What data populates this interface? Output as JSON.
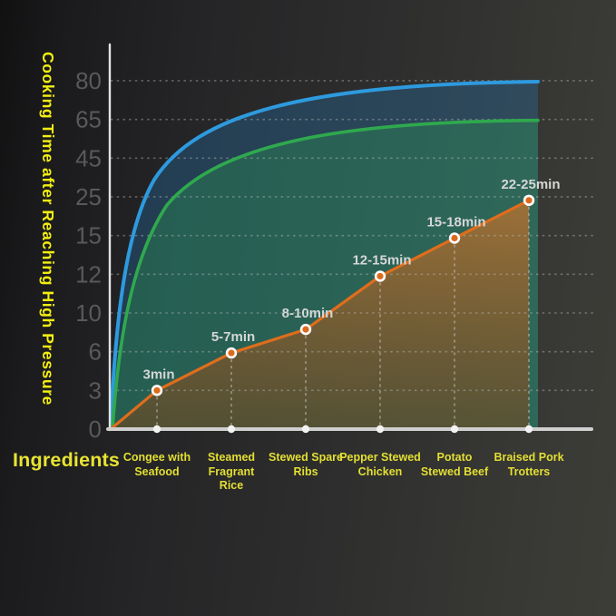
{
  "page": {
    "background_left": "#161617",
    "background_right": "#3d3d38"
  },
  "chart_data": {
    "type": "line",
    "title": "",
    "ylabel": "Cooking Time after Reaching High Pressure",
    "xlabel": "Ingredients",
    "categories": [
      "Congee with Seafood",
      "Steamed Fragrant Rice",
      "Stewed Spare Ribs",
      "Pepper Stewed Chicken",
      "Potato Stewed Beef",
      "Braised Pork Trotters"
    ],
    "category_lines": [
      [
        "Congee with",
        "Seafood"
      ],
      [
        "Steamed",
        "Fragrant",
        "Rice"
      ],
      [
        "Stewed Spare",
        "Ribs"
      ],
      [
        "Pepper Stewed",
        "Chicken"
      ],
      [
        "Potato",
        "Stewed Beef"
      ],
      [
        "Braised Pork",
        "Trotters"
      ]
    ],
    "y_ticks": [
      0,
      3,
      6,
      10,
      12,
      15,
      25,
      45,
      65,
      80
    ],
    "y_tick_labels": [
      "0",
      "3",
      "6",
      "10",
      "12",
      "15",
      "25",
      "45",
      "65",
      "80"
    ],
    "grid": "dashed horizontal at each tick; dashed vertical from each data point to baseline",
    "legend_position": "none",
    "series": [
      {
        "name": "cooking-time-minutes",
        "type": "line-area",
        "color": "#e06d1c",
        "point_labels": [
          "3min",
          "5-7min",
          "8-10min",
          "12-15min",
          "15-18min",
          "22-25min"
        ],
        "range_min": [
          3,
          5,
          8,
          12,
          15,
          22
        ],
        "range_max": [
          3,
          7,
          10,
          15,
          18,
          25
        ],
        "plotted_values": [
          3,
          5.9,
          8.3,
          11.9,
          14.8,
          24.1
        ]
      },
      {
        "name": "upper-reference-curve",
        "type": "saturating-area-curve",
        "color": "#2e9ade",
        "plateau": 80
      },
      {
        "name": "lower-reference-curve",
        "type": "saturating-area-curve",
        "color": "#2fa94e",
        "plateau": 65
      }
    ],
    "colors": {
      "axis": "#e3e3e3",
      "baseline": "#cfcfcf",
      "gridline": "#bebebe",
      "tick_label": "#595959",
      "point_label": "#d6d6d6",
      "point_outer": "#ffffff",
      "point_inner": "#dd6a1c",
      "baseline_dot": "#f2f2f2",
      "axis_title": "#f2ee12",
      "category_label": "#e3df33"
    }
  }
}
